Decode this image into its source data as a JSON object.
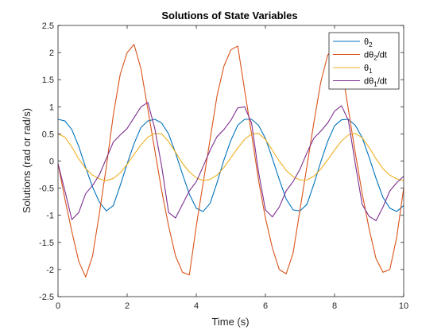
{
  "chart_data": {
    "type": "line",
    "title": "Solutions of State Variables",
    "xlabel": "Time (s)",
    "ylabel": "Solutions (rad or rad/s)",
    "xlim": [
      0,
      10
    ],
    "ylim": [
      -2.5,
      2.5
    ],
    "xticks": [
      "0",
      "2",
      "4",
      "6",
      "8",
      "10"
    ],
    "yticks": [
      "-2.5",
      "-2",
      "-1.5",
      "-1",
      "-0.5",
      "0",
      "0.5",
      "1",
      "1.5",
      "2",
      "2.5"
    ],
    "grid": false,
    "legend_position": "top-right",
    "series": [
      {
        "label_base": "θ",
        "label_sub": "2",
        "label_suffix": "",
        "color": "#0072BD",
        "x": [
          0,
          0.2,
          0.4,
          0.6,
          0.8,
          1.0,
          1.2,
          1.4,
          1.6,
          1.8,
          2.0,
          2.2,
          2.4,
          2.6,
          2.8,
          3.0,
          3.2,
          3.4,
          3.6,
          3.8,
          4.0,
          4.2,
          4.4,
          4.6,
          4.8,
          5.0,
          5.2,
          5.4,
          5.6,
          5.8,
          6.0,
          6.2,
          6.4,
          6.6,
          6.8,
          7.0,
          7.2,
          7.4,
          7.6,
          7.8,
          8.0,
          8.2,
          8.4,
          8.6,
          8.8,
          9.0,
          9.2,
          9.4,
          9.6,
          9.8,
          10.0
        ],
        "y": [
          0.77,
          0.74,
          0.58,
          0.27,
          -0.12,
          -0.48,
          -0.76,
          -0.92,
          -0.82,
          -0.45,
          -0.05,
          0.32,
          0.62,
          0.74,
          0.77,
          0.7,
          0.5,
          0.15,
          -0.24,
          -0.61,
          -0.87,
          -0.93,
          -0.78,
          -0.4,
          0.02,
          0.38,
          0.66,
          0.77,
          0.77,
          0.66,
          0.42,
          0.05,
          -0.34,
          -0.7,
          -0.9,
          -0.92,
          -0.8,
          -0.43,
          -0.02,
          0.36,
          0.65,
          0.76,
          0.77,
          0.66,
          0.43,
          0.07,
          -0.32,
          -0.67,
          -0.87,
          -0.93,
          -0.82
        ]
      },
      {
        "label_base": "dθ",
        "label_sub": "2",
        "label_suffix": "/dt",
        "color": "#D95319",
        "x": [
          0,
          0.2,
          0.4,
          0.6,
          0.8,
          1.0,
          1.2,
          1.4,
          1.6,
          1.8,
          2.0,
          2.2,
          2.4,
          2.6,
          2.8,
          3.0,
          3.2,
          3.4,
          3.6,
          3.8,
          4.0,
          4.2,
          4.4,
          4.6,
          4.8,
          5.0,
          5.2,
          5.4,
          5.6,
          5.8,
          6.0,
          6.2,
          6.4,
          6.6,
          6.8,
          7.0,
          7.2,
          7.4,
          7.6,
          7.8,
          8.0,
          8.2,
          8.4,
          8.6,
          8.8,
          9.0,
          9.2,
          9.4,
          9.6,
          9.8,
          10.0
        ],
        "y": [
          -0.05,
          -0.7,
          -1.3,
          -1.85,
          -2.14,
          -1.75,
          -0.95,
          -0.1,
          0.85,
          1.6,
          2.0,
          2.15,
          1.7,
          0.95,
          0.2,
          -0.55,
          -1.2,
          -1.75,
          -2.05,
          -2.1,
          -1.2,
          -0.4,
          0.4,
          1.2,
          1.75,
          2.05,
          2.12,
          1.3,
          0.5,
          -0.35,
          -1.05,
          -1.6,
          -2.0,
          -2.08,
          -1.7,
          -0.9,
          -0.1,
          0.7,
          1.45,
          1.95,
          2.12,
          1.75,
          0.95,
          0.15,
          -0.6,
          -1.25,
          -1.8,
          -2.05,
          -2.0,
          -1.4,
          -0.5
        ]
      },
      {
        "label_base": "θ",
        "label_sub": "1",
        "label_suffix": "",
        "color": "#EDB120",
        "x": [
          0,
          0.2,
          0.4,
          0.6,
          0.8,
          1.0,
          1.2,
          1.4,
          1.6,
          1.8,
          2.0,
          2.2,
          2.4,
          2.6,
          2.8,
          3.0,
          3.2,
          3.4,
          3.6,
          3.8,
          4.0,
          4.2,
          4.4,
          4.6,
          4.8,
          5.0,
          5.2,
          5.4,
          5.6,
          5.8,
          6.0,
          6.2,
          6.4,
          6.6,
          6.8,
          7.0,
          7.2,
          7.4,
          7.6,
          7.8,
          8.0,
          8.2,
          8.4,
          8.6,
          8.8,
          9.0,
          9.2,
          9.4,
          9.6,
          9.8,
          10.0
        ],
        "y": [
          0.5,
          0.44,
          0.26,
          0.04,
          -0.14,
          -0.26,
          -0.33,
          -0.36,
          -0.32,
          -0.22,
          -0.06,
          0.12,
          0.3,
          0.44,
          0.51,
          0.5,
          0.36,
          0.16,
          -0.04,
          -0.2,
          -0.31,
          -0.36,
          -0.34,
          -0.26,
          -0.12,
          0.06,
          0.24,
          0.4,
          0.5,
          0.51,
          0.4,
          0.2,
          0.0,
          -0.17,
          -0.29,
          -0.35,
          -0.35,
          -0.28,
          -0.15,
          0.02,
          0.2,
          0.37,
          0.48,
          0.51,
          0.43,
          0.25,
          0.04,
          -0.14,
          -0.26,
          -0.33,
          -0.36
        ]
      },
      {
        "label_base": "dθ",
        "label_sub": "1",
        "label_suffix": "/dt",
        "color": "#7E2F8E",
        "x": [
          0,
          0.2,
          0.4,
          0.6,
          0.8,
          1.0,
          1.2,
          1.4,
          1.6,
          1.8,
          2.0,
          2.2,
          2.4,
          2.6,
          2.8,
          3.0,
          3.2,
          3.4,
          3.6,
          3.8,
          4.0,
          4.2,
          4.4,
          4.6,
          4.8,
          5.0,
          5.2,
          5.4,
          5.6,
          5.8,
          6.0,
          6.2,
          6.4,
          6.6,
          6.8,
          7.0,
          7.2,
          7.4,
          7.6,
          7.8,
          8.0,
          8.2,
          8.4,
          8.6,
          8.8,
          9.0,
          9.2,
          9.4,
          9.6,
          9.8,
          10.0
        ],
        "y": [
          -0.05,
          -0.55,
          -1.08,
          -0.95,
          -0.6,
          -0.45,
          -0.25,
          0.05,
          0.35,
          0.48,
          0.6,
          0.8,
          1.0,
          1.08,
          0.6,
          -0.1,
          -0.95,
          -1.05,
          -0.8,
          -0.55,
          -0.38,
          -0.1,
          0.2,
          0.45,
          0.58,
          0.75,
          0.98,
          1.0,
          0.7,
          -0.2,
          -0.9,
          -1.03,
          -0.85,
          -0.55,
          -0.38,
          -0.15,
          0.15,
          0.42,
          0.55,
          0.7,
          0.92,
          1.02,
          0.75,
          -0.05,
          -0.8,
          -1.02,
          -1.1,
          -0.85,
          -0.55,
          -0.4,
          -0.28
        ]
      }
    ]
  }
}
